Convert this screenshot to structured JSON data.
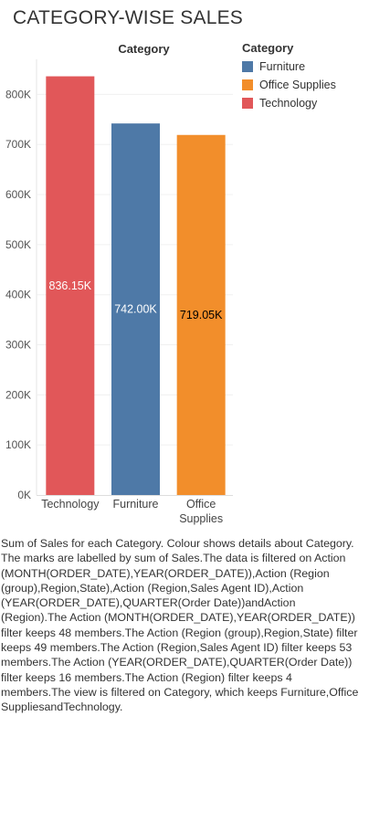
{
  "title": "CATEGORY-WISE SALES",
  "legend": {
    "title": "Category",
    "items": [
      {
        "label": "Furniture",
        "color": "#4e79a7"
      },
      {
        "label": "Office Supplies",
        "color": "#f28e2b"
      },
      {
        "label": "Technology",
        "color": "#e15759"
      }
    ]
  },
  "chart_data": {
    "type": "bar",
    "column_header": "Category",
    "categories": [
      [
        "Technology"
      ],
      [
        "Furniture"
      ],
      [
        "Office",
        "Supplies"
      ]
    ],
    "values": [
      836150,
      742000,
      719050
    ],
    "labels": [
      "836.15K",
      "742.00K",
      "719.05K"
    ],
    "colors": [
      "#e15759",
      "#4e79a7",
      "#f28e2b"
    ],
    "label_colors": [
      "#ffffff",
      "#ffffff",
      "#000000"
    ],
    "ylim": [
      0,
      870000
    ],
    "yticks": [
      0,
      100000,
      200000,
      300000,
      400000,
      500000,
      600000,
      700000,
      800000
    ],
    "ytick_labels": [
      "0K",
      "100K",
      "200K",
      "300K",
      "400K",
      "500K",
      "600K",
      "700K",
      "800K"
    ],
    "grid": true,
    "legend_position": "right"
  },
  "caption": "Sum of Sales for each Category. Colour shows details about Category. The marks are labelled by sum of Sales.The data is filtered on Action (MONTH(ORDER_DATE),YEAR(OR­DER_DATE)),Action (Region (group),Region,State),Action (Region,Sales Agent ID),Action (YEAR(OR­DER_DATE),QUARTER(Order Date))andAction (Region).The Action (MONTH(ORDER_DATE),YEAR(OR­DER_DATE)) filter keeps 48 members.The Action (Region (group),Region,State) filter keeps 49 members.The Action (Region,Sales Agent ID) filter keeps 53 members.The Action (YEAR(ORDER_DATE),QUARTER(Or­der Date)) filter keeps 16 members.The Action (Region) filter keeps 4 members.The view is filtered on Category, which keeps Furniture,Office SuppliesandTechnology."
}
